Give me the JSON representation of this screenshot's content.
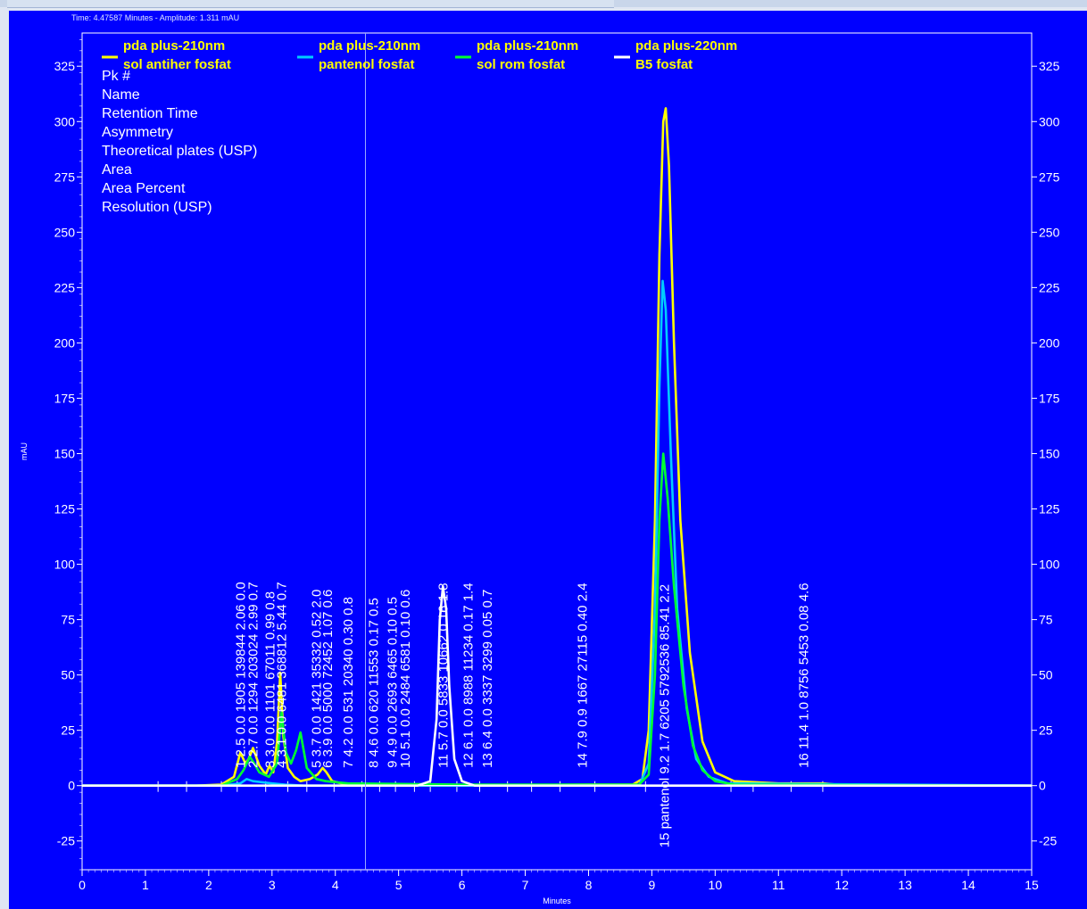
{
  "window": {
    "status_text": "Time: 4.47587 Minutes - Amplitude: 1.311 mAU"
  },
  "colors": {
    "background": "#0000ff",
    "foreground": "#ffffff",
    "legend_text": "#ffff00"
  },
  "chart_data": {
    "type": "line",
    "xlabel": "Minutes",
    "ylabel": "mAU",
    "xlim": [
      0,
      15
    ],
    "ylim": [
      -38,
      340
    ],
    "x_ticks": [
      0,
      1,
      2,
      3,
      4,
      5,
      6,
      7,
      8,
      9,
      10,
      11,
      12,
      13,
      14,
      15
    ],
    "y_ticks": [
      -25,
      0,
      25,
      50,
      75,
      100,
      125,
      150,
      175,
      200,
      225,
      250,
      275,
      300,
      325
    ],
    "cursor_x": 4.47587,
    "grid": false,
    "legend_position": "top-left",
    "series": [
      {
        "name": [
          "pda plus-210nm",
          "sol antiher fosfat"
        ],
        "color": "#ffff00",
        "x": [
          0,
          1.2,
          1.8,
          2.2,
          2.4,
          2.5,
          2.58,
          2.63,
          2.7,
          2.8,
          2.9,
          2.96,
          3.02,
          3.08,
          3.13,
          3.18,
          3.25,
          3.35,
          3.45,
          3.6,
          3.72,
          3.8,
          3.86,
          3.95,
          4.1,
          4.5,
          5.0,
          5.5,
          6.0,
          7.0,
          8.0,
          8.7,
          8.85,
          8.95,
          9.05,
          9.12,
          9.18,
          9.22,
          9.27,
          9.35,
          9.45,
          9.6,
          9.8,
          10.0,
          10.3,
          11.0,
          11.5,
          11.7,
          12.0,
          15.0
        ],
        "y": [
          0,
          0,
          0,
          0.5,
          4,
          15,
          10,
          12,
          17,
          9,
          5,
          9,
          6,
          20,
          51,
          22,
          8,
          4,
          2,
          3,
          5,
          8,
          6,
          2,
          1,
          0.5,
          0.3,
          0.3,
          0.3,
          0.3,
          0.5,
          0.5,
          3,
          25,
          120,
          240,
          300,
          306,
          280,
          200,
          120,
          60,
          20,
          6,
          2,
          1,
          1,
          1,
          0.3,
          0
        ]
      },
      {
        "name": [
          "pda plus-210nm",
          "pantenol fosfat"
        ],
        "color": "#00ccff",
        "x": [
          0,
          2.2,
          2.5,
          2.6,
          2.7,
          3.0,
          3.2,
          3.5,
          8.8,
          8.95,
          9.05,
          9.12,
          9.17,
          9.22,
          9.3,
          9.4,
          9.55,
          9.7,
          9.9,
          10.2,
          15.0
        ],
        "y": [
          0,
          0,
          1,
          3,
          2,
          1,
          0.5,
          0,
          0,
          10,
          80,
          180,
          228,
          215,
          150,
          80,
          35,
          12,
          4,
          1,
          0
        ]
      },
      {
        "name": [
          "pda plus-210nm",
          "sol rom fosfat"
        ],
        "color": "#00ff33",
        "x": [
          0,
          2.2,
          2.45,
          2.55,
          2.65,
          2.72,
          2.8,
          2.95,
          3.08,
          3.15,
          3.22,
          3.3,
          3.38,
          3.45,
          3.55,
          3.7,
          3.85,
          4.2,
          6.0,
          8.8,
          8.95,
          9.05,
          9.12,
          9.18,
          9.25,
          9.35,
          9.5,
          9.65,
          9.8,
          10.0,
          10.3,
          15.0
        ],
        "y": [
          0,
          0,
          3,
          7,
          13,
          10,
          6,
          4,
          10,
          33,
          15,
          10,
          16,
          24,
          8,
          3,
          2,
          1,
          0.5,
          0.5,
          5,
          50,
          120,
          150,
          130,
          90,
          45,
          18,
          7,
          2,
          0.5,
          0
        ]
      },
      {
        "name": [
          "pda plus-220nm",
          "B5 fosfat"
        ],
        "color": "#ffffff",
        "x": [
          0,
          5.3,
          5.5,
          5.6,
          5.65,
          5.7,
          5.75,
          5.8,
          5.88,
          6.0,
          6.2,
          15.0
        ],
        "y": [
          0,
          0,
          2,
          30,
          75,
          90,
          80,
          45,
          12,
          2,
          0,
          0
        ]
      }
    ],
    "result_fields": [
      "Pk #",
      "Name",
      "Retention Time",
      "Asymmetry",
      "Theoretical plates (USP)",
      "Area",
      "Area Percent",
      "Resolution (USP)"
    ],
    "peak_annotations": [
      {
        "x": 2.5,
        "text": "1   2.5  0.0  1905  139844  2.06  0.0"
      },
      {
        "x": 2.7,
        "text": "2   2.7  0.0  1294  203024  2.99  0.7"
      },
      {
        "x": 2.97,
        "text": "3   3.0  0.0  1101  67011  0.99  0.8"
      },
      {
        "x": 3.15,
        "text": "4   3.1  0.0  6481  368812  5.44  0.7"
      },
      {
        "x": 3.7,
        "text": "5   3.7  0.0  1421  35332  0.52  2.0"
      },
      {
        "x": 3.88,
        "text": "6   3.9  0.0  5000  72452  1.07  0.6"
      },
      {
        "x": 4.2,
        "text": "7   4.2  0.0  531  20340  0.30  0.8"
      },
      {
        "x": 4.6,
        "text": "8   4.6  0.0  620  11553  0.17  0.5"
      },
      {
        "x": 4.9,
        "text": "9   4.9  0.0  2693  6465  0.10  0.5"
      },
      {
        "x": 5.1,
        "text": "10   5.1  0.0  2484  6581  0.10  0.6"
      },
      {
        "x": 5.7,
        "text": "11   5.7  0.0  5833  10662  0.16  1.8"
      },
      {
        "x": 6.1,
        "text": "12   6.1  0.0  8988  11234  0.17  1.4"
      },
      {
        "x": 6.4,
        "text": "13   6.4  0.0  3337  3299  0.05  0.7"
      },
      {
        "x": 7.9,
        "text": "14   7.9  0.9  1667  27115  0.40  2.4"
      },
      {
        "x": 9.2,
        "text": "15  pantenol  9.2  1.7  6205  5792536  85.41  2.2"
      },
      {
        "x": 11.4,
        "text": "16   11.4  1.0  8756  5453  0.08  4.6"
      }
    ]
  }
}
